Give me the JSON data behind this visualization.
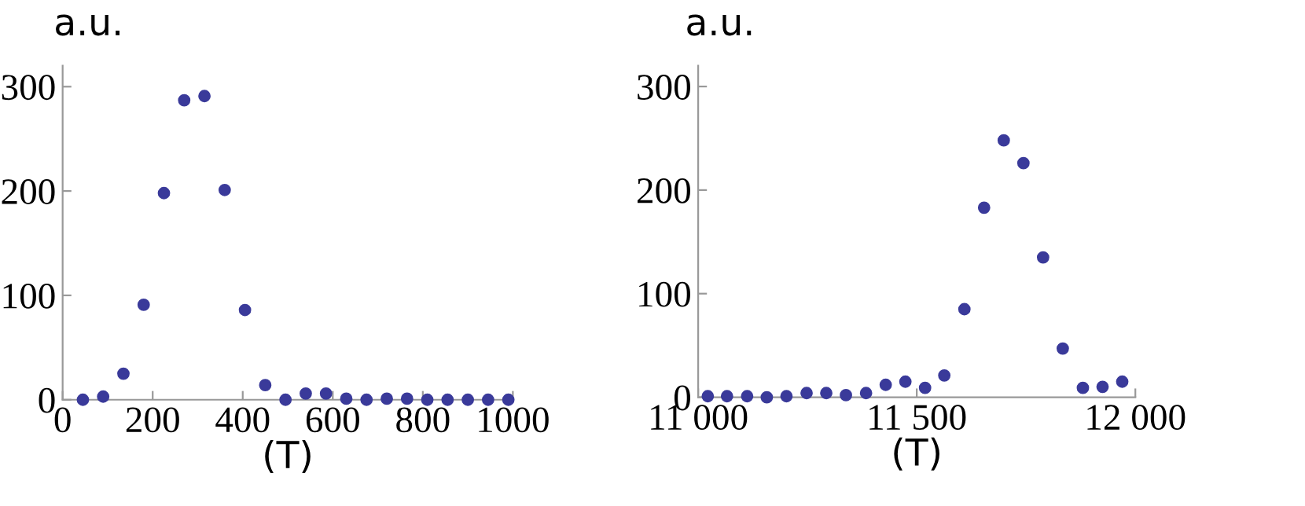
{
  "chart_data": [
    {
      "type": "scatter",
      "ylabel": "a.u.",
      "xlabel": "(T)",
      "marker": "circle",
      "grid": false,
      "xlim": [
        0,
        1000
      ],
      "ylim": [
        0,
        320
      ],
      "xticks": [
        0,
        200,
        400,
        600,
        800,
        1000
      ],
      "yticks": [
        0,
        100,
        200,
        300
      ],
      "series": [
        {
          "color": "#3a3a9a",
          "x": [
            45,
            90,
            135,
            180,
            225,
            270,
            315,
            360,
            405,
            450,
            495,
            540,
            585,
            630,
            675,
            720,
            765,
            810,
            855,
            900,
            945,
            990
          ],
          "values": [
            0,
            3,
            25,
            91,
            198,
            287,
            291,
            201,
            86,
            14,
            0,
            6,
            6,
            1,
            0,
            1,
            1,
            0,
            0,
            0,
            0,
            0
          ]
        }
      ]
    },
    {
      "type": "scatter",
      "ylabel": "a.u.",
      "xlabel": "(T)",
      "marker": "circle",
      "grid": false,
      "xlim": [
        11000,
        12000
      ],
      "ylim": [
        0,
        320
      ],
      "xticks": [
        {
          "value": 11000,
          "label": "11 000"
        },
        {
          "value": 11500,
          "label": "11 500"
        },
        {
          "value": 12000,
          "label": "12 000"
        }
      ],
      "yticks": [
        0,
        100,
        200,
        300
      ],
      "series": [
        {
          "color": "#3a3a9a",
          "x": [
            11022,
            11066,
            11112,
            11157,
            11202,
            11248,
            11293,
            11338,
            11384,
            11429,
            11474,
            11519,
            11563,
            11609,
            11654,
            11699,
            11744,
            11789,
            11834,
            11880,
            11925,
            11970
          ],
          "values": [
            1,
            1,
            1,
            0,
            1,
            4,
            4,
            2,
            4,
            12,
            15,
            9,
            21,
            85,
            183,
            248,
            226,
            135,
            47,
            9,
            10,
            15
          ]
        }
      ]
    }
  ]
}
